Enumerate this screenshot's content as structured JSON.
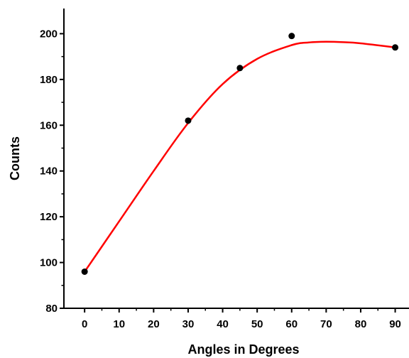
{
  "chart_data": {
    "type": "scatter",
    "title": "",
    "xlabel": "Angles in Degrees",
    "ylabel": "Counts",
    "xlim": [
      -6,
      94
    ],
    "ylim": [
      80,
      211
    ],
    "x_ticks": [
      0,
      10,
      20,
      30,
      40,
      50,
      60,
      70,
      80,
      90
    ],
    "y_ticks": [
      80,
      100,
      120,
      140,
      160,
      180,
      200
    ],
    "grid": false,
    "legend": "none",
    "series": [
      {
        "kind": "points",
        "color": "#000000",
        "x": [
          0,
          30,
          45,
          60,
          90
        ],
        "y": [
          96,
          162,
          185,
          199,
          194
        ]
      },
      {
        "kind": "fit-line",
        "color": "#ff0000",
        "x": [
          0,
          10,
          20,
          30,
          40,
          50,
          60,
          65,
          70,
          75,
          80,
          90
        ],
        "y": [
          96,
          118,
          140,
          161,
          178,
          189,
          195,
          196.2,
          196.5,
          196.3,
          195.8,
          194
        ]
      }
    ]
  }
}
